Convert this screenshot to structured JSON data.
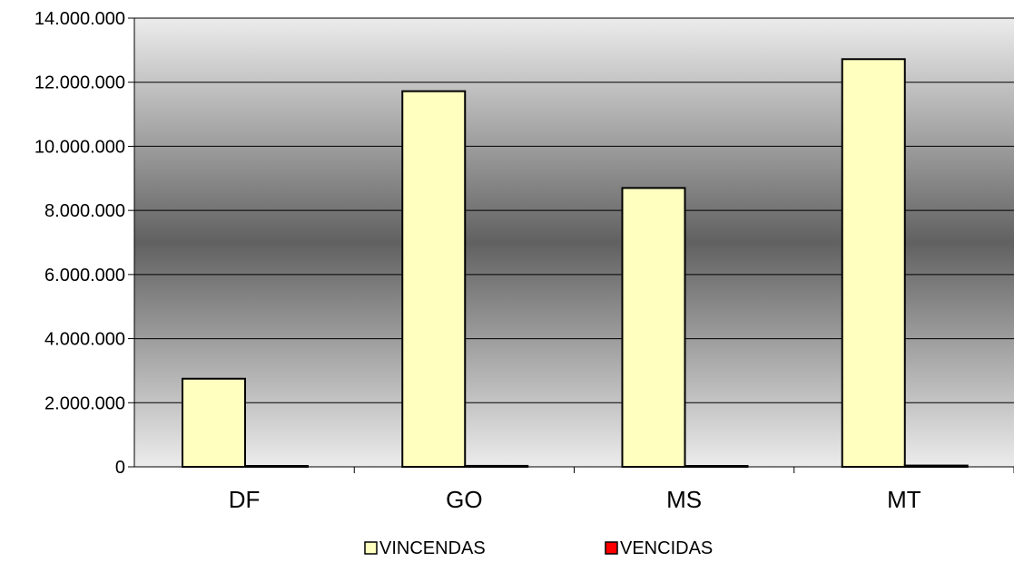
{
  "chart_data": {
    "type": "bar",
    "categories": [
      "DF",
      "GO",
      "MS",
      "MT"
    ],
    "series": [
      {
        "name": "VINCENDAS",
        "values": [
          2750000,
          11720000,
          8700000,
          12720000
        ],
        "color": "#ffffc0"
      },
      {
        "name": "VENCIDAS",
        "values": [
          15000,
          30000,
          15000,
          40000
        ],
        "color": "#ff0000"
      }
    ],
    "ylim": [
      0,
      14000000
    ],
    "yticks": [
      0,
      2000000,
      4000000,
      6000000,
      8000000,
      10000000,
      12000000,
      14000000
    ],
    "ytick_labels": [
      "0",
      "2.000.000",
      "4.000.000",
      "6.000.000",
      "8.000.000",
      "10.000.000",
      "12.000.000",
      "14.000.000"
    ],
    "grid": true,
    "legend_position": "bottom",
    "background": "gradient-gray"
  }
}
